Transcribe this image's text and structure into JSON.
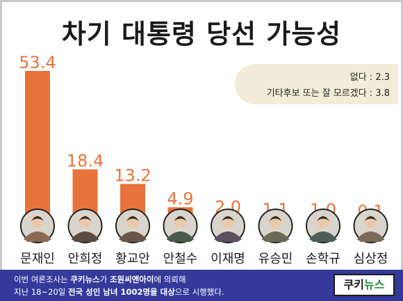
{
  "title": "차기 대통령 당선 가능성",
  "notes": [
    {
      "text": "없다 : 2.3"
    },
    {
      "text": "기타후보 또는 잘 모르겠다 : 3.8"
    }
  ],
  "colors": {
    "bar": "#e8733a",
    "bar_label": "#e8733a",
    "footer_bg": "#34399a",
    "note_bg": "#f3ecd8"
  },
  "chart_data": {
    "type": "bar",
    "categories": [
      "문재인",
      "안희정",
      "황교안",
      "안철수",
      "이재명",
      "유승민",
      "손학규",
      "심상정"
    ],
    "values": [
      53.4,
      18.4,
      13.2,
      4.9,
      2.0,
      1.1,
      1.0,
      0.1
    ],
    "value_labels": [
      "53.4",
      "18.4",
      "13.2",
      "4.9",
      "2.0",
      "1.1",
      "1.0",
      "0.1"
    ],
    "ylim": [
      0,
      53.4
    ],
    "grid": false,
    "title": "차기 대통령 당선 가능성"
  },
  "footer": {
    "line1_a": "이번 여론조사는 ",
    "line1_b": "쿠키뉴스",
    "line1_c": "가 ",
    "line1_d": "조원씨앤아이",
    "line1_e": "에 의뢰해",
    "line2_a": "지난 18~20일 ",
    "line2_b": "전국 성인 남녀 1002명을 대상",
    "line2_c": "으로 시행했다.",
    "logo_a": "쿠키",
    "logo_b": "뉴스"
  }
}
